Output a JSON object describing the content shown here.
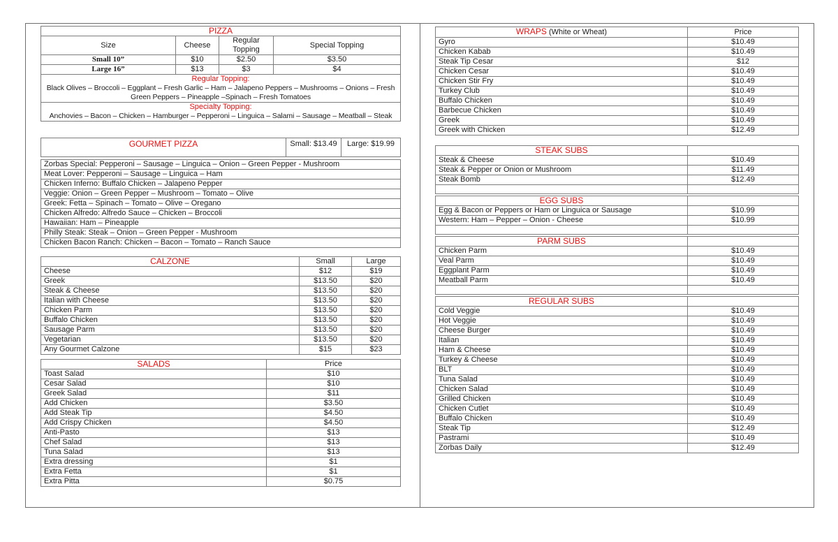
{
  "accent_red": "#ee1111",
  "left": {
    "pizza": {
      "title": "PIZZA",
      "columns": [
        "Size",
        "Cheese",
        "Regular Topping",
        "Special Topping"
      ],
      "rows": [
        {
          "size": "Small 10”",
          "cheese": "$10",
          "regular": "$2.50",
          "special": "$3.50"
        },
        {
          "size": "Large 16”",
          "cheese": "$13",
          "regular": "$3",
          "special": "$4"
        }
      ],
      "regular_topping_label": "Regular Topping:",
      "regular_toppings": "Black Olives – Broccoli – Eggplant – Fresh Garlic – Ham – Jalapeno Peppers – Mushrooms – Onions – Fresh Green Peppers – Pineapple –Spinach – Fresh Tomatoes",
      "specialty_topping_label": "Specialty Topping:",
      "specialty_toppings": "Anchovies – Bacon – Chicken – Hamburger – Pepperoni – Linguica – Salami – Sausage – Meatball – Steak"
    },
    "gourmet": {
      "title": "GOURMET PIZZA",
      "small_label": "Small: $13.49",
      "large_label": "Large: $19.99",
      "items": [
        "Zorbas Special: Pepperoni – Sausage – Linguica – Onion – Green Pepper - Mushroom",
        "Meat Lover: Pepperoni – Sausage – Linguica – Ham",
        "Chicken Inferno: Buffalo Chicken – Jalapeno Pepper",
        "Veggie: Onion – Green Pepper – Mushroom – Tomato – Olive",
        "Greek: Fetta – Spinach – Tomato – Olive – Oregano",
        "Chicken Alfredo: Alfredo Sauce – Chicken – Broccoli",
        "Hawaiian: Ham – Pineapple",
        "Philly Steak: Steak – Onion – Green Pepper - Mushroom",
        "Chicken Bacon Ranch: Chicken – Bacon – Tomato – Ranch Sauce"
      ]
    },
    "calzone": {
      "title": "CALZONE",
      "columns": [
        "Small",
        "Large"
      ],
      "items": [
        {
          "name": "Cheese",
          "small": "$12",
          "large": "$19"
        },
        {
          "name": "Greek",
          "small": "$13.50",
          "large": "$20"
        },
        {
          "name": "Steak & Cheese",
          "small": "$13.50",
          "large": "$20"
        },
        {
          "name": "Italian with Cheese",
          "small": "$13.50",
          "large": "$20"
        },
        {
          "name": "Chicken Parm",
          "small": "$13.50",
          "large": "$20"
        },
        {
          "name": "Buffalo Chicken",
          "small": "$13.50",
          "large": "$20"
        },
        {
          "name": "Sausage Parm",
          "small": "$13.50",
          "large": "$20"
        },
        {
          "name": "Vegetarian",
          "small": "$13.50",
          "large": "$20"
        },
        {
          "name": "Any Gourmet Calzone",
          "small": "$15",
          "large": "$23"
        }
      ]
    },
    "salads": {
      "title": "SALADS",
      "price_label": "Price",
      "items": [
        {
          "name": "Toast Salad",
          "price": "$10"
        },
        {
          "name": "Cesar Salad",
          "price": "$10"
        },
        {
          "name": "Greek Salad",
          "price": "$11"
        },
        {
          "name": "Add Chicken",
          "price": "$3.50"
        },
        {
          "name": "Add Steak Tip",
          "price": "$4.50"
        },
        {
          "name": "Add Crispy Chicken",
          "price": "$4.50"
        },
        {
          "name": "Anti-Pasto",
          "price": "$13"
        },
        {
          "name": "Chef Salad",
          "price": "$13"
        },
        {
          "name": "Tuna Salad",
          "price": "$13"
        },
        {
          "name": "Extra dressing",
          "price": "$1"
        },
        {
          "name": "Extra Fetta",
          "price": "$1"
        },
        {
          "name": "Extra Pitta",
          "price": "$0.75"
        }
      ]
    }
  },
  "right": {
    "wraps": {
      "title": "WRAPS",
      "title_suffix": " (White or Wheat)",
      "price_label": "Price",
      "items": [
        {
          "name": "Gyro",
          "price": "$10.49"
        },
        {
          "name": "Chicken Kabab",
          "price": "$10.49"
        },
        {
          "name": "Steak Tip Cesar",
          "price": "$12"
        },
        {
          "name": "Chicken Cesar",
          "price": "$10.49"
        },
        {
          "name": "Chicken Stir Fry",
          "price": "$10.49"
        },
        {
          "name": "Turkey Club",
          "price": "$10.49"
        },
        {
          "name": "Buffalo Chicken",
          "price": "$10.49"
        },
        {
          "name": "Barbecue Chicken",
          "price": "$10.49"
        },
        {
          "name": "Greek",
          "price": "$10.49"
        },
        {
          "name": "Greek with Chicken",
          "price": "$12.49"
        }
      ]
    },
    "steak_subs": {
      "title": "STEAK SUBS",
      "blank_row": true,
      "items": [
        {
          "name": "Steak & Cheese",
          "price": "$10.49"
        },
        {
          "name": "Steak & Pepper or Onion or Mushroom",
          "price": "$11.49"
        },
        {
          "name": "Steak Bomb",
          "price": "$12.49"
        }
      ]
    },
    "egg_subs": {
      "title": "EGG SUBS",
      "blank_row": true,
      "items": [
        {
          "name": "Egg & Bacon or Peppers or Ham or Linguica or Sausage",
          "price": "$10.99"
        },
        {
          "name": "Western: Ham – Pepper – Onion - Cheese",
          "price": "$10.99"
        }
      ]
    },
    "parm_subs": {
      "title": "PARM SUBS",
      "blank_row": true,
      "items": [
        {
          "name": "Chicken Parm",
          "price": "$10.49"
        },
        {
          "name": "Veal Parm",
          "price": "$10.49"
        },
        {
          "name": "Eggplant Parm",
          "price": "$10.49"
        },
        {
          "name": "Meatball Parm",
          "price": "$10.49"
        }
      ]
    },
    "regular_subs": {
      "title": "REGULAR SUBS",
      "blank_row": false,
      "items": [
        {
          "name": "Cold Veggie",
          "price": "$10.49"
        },
        {
          "name": "Hot Veggie",
          "price": "$10.49"
        },
        {
          "name": "Cheese Burger",
          "price": "$10.49"
        },
        {
          "name": "Italian",
          "price": "$10.49"
        },
        {
          "name": "Ham & Cheese",
          "price": "$10.49"
        },
        {
          "name": "Turkey & Cheese",
          "price": "$10.49"
        },
        {
          "name": "BLT",
          "price": "$10.49"
        },
        {
          "name": "Tuna Salad",
          "price": "$10.49"
        },
        {
          "name": "Chicken Salad",
          "price": "$10.49"
        },
        {
          "name": "Grilled Chicken",
          "price": "$10.49"
        },
        {
          "name": "Chicken Cutlet",
          "price": "$10.49"
        },
        {
          "name": "Buffalo Chicken",
          "price": "$10.49"
        },
        {
          "name": "Steak Tip",
          "price": "$12.49"
        },
        {
          "name": "Pastrami",
          "price": "$10.49"
        },
        {
          "name": "Zorbas Daily",
          "price": "$12.49"
        }
      ]
    }
  }
}
